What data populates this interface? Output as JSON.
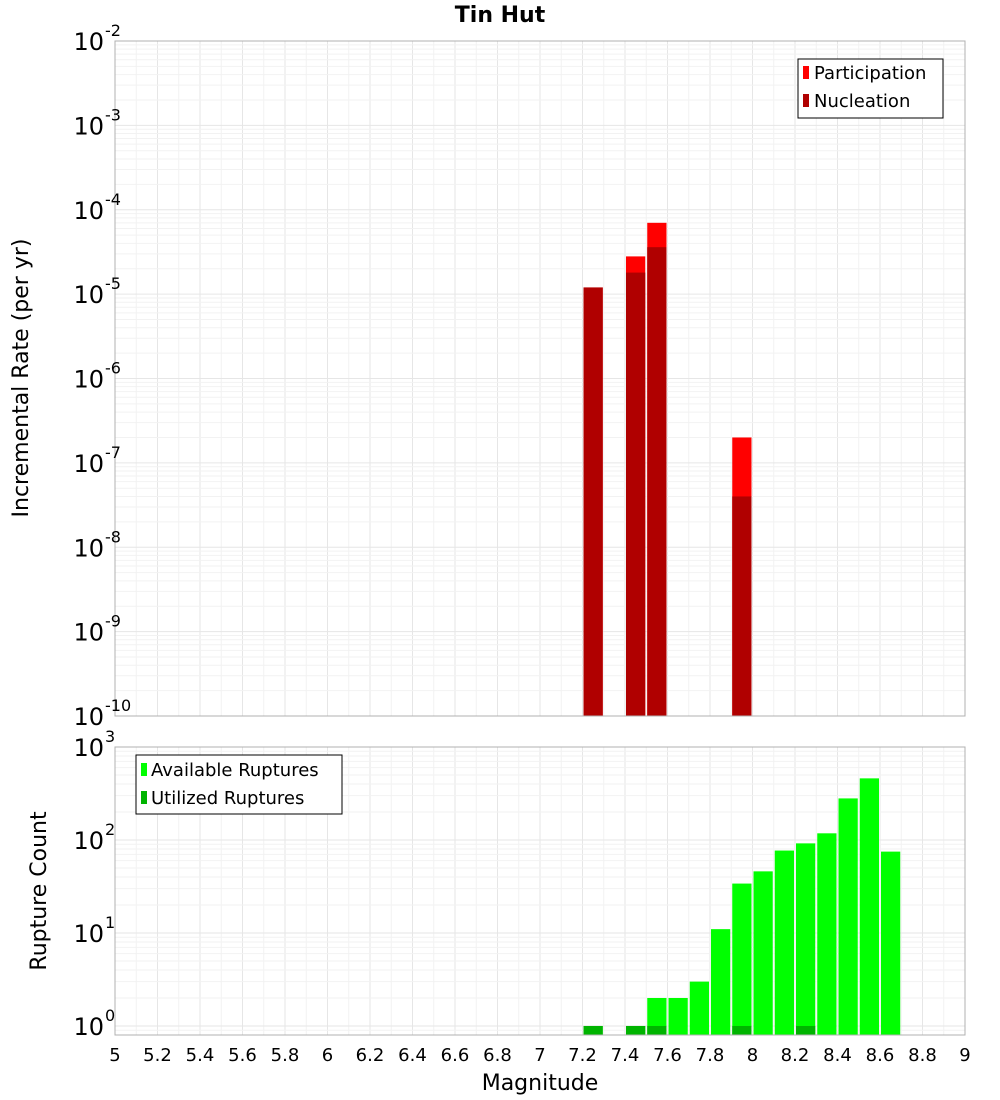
{
  "chart_data": [
    {
      "type": "bar",
      "title": "Tin Hut",
      "xlabel": "Magnitude",
      "ylabel": "Incremental Rate (per yr)",
      "yscale": "log",
      "ylim": [
        1e-10,
        0.01
      ],
      "xlim": [
        5,
        9
      ],
      "bar_width": 0.1,
      "grid": true,
      "legend_placement": "top-right",
      "y_ticks": [
        {
          "base": "10",
          "exp": "-10"
        },
        {
          "base": "10",
          "exp": "-9"
        },
        {
          "base": "10",
          "exp": "-8"
        },
        {
          "base": "10",
          "exp": "-7"
        },
        {
          "base": "10",
          "exp": "-6"
        },
        {
          "base": "10",
          "exp": "-5"
        },
        {
          "base": "10",
          "exp": "-4"
        },
        {
          "base": "10",
          "exp": "-3"
        },
        {
          "base": "10",
          "exp": "-2"
        }
      ],
      "series": [
        {
          "name": "Participation",
          "color": "#ff0000",
          "x": [
            7.25,
            7.45,
            7.55,
            7.95
          ],
          "values": [
            1.2e-05,
            2.8e-05,
            7e-05,
            2e-07
          ]
        },
        {
          "name": "Nucleation",
          "color": "#b00000",
          "x": [
            7.25,
            7.45,
            7.55,
            7.95
          ],
          "values": [
            1.2e-05,
            1.8e-05,
            3.6e-05,
            4e-08
          ]
        }
      ]
    },
    {
      "type": "bar",
      "xlabel": "Magnitude",
      "ylabel": "Rupture Count",
      "yscale": "log",
      "ylim": [
        0.8,
        1000
      ],
      "xlim": [
        5,
        9
      ],
      "bar_width": 0.1,
      "grid": true,
      "legend_placement": "top-left",
      "y_ticks": [
        {
          "base": "10",
          "exp": "0"
        },
        {
          "base": "10",
          "exp": "1"
        },
        {
          "base": "10",
          "exp": "2"
        },
        {
          "base": "10",
          "exp": "3"
        }
      ],
      "x_tick_labels": [
        "5",
        "5.2",
        "5.4",
        "5.6",
        "5.8",
        "6",
        "6.2",
        "6.4",
        "6.6",
        "6.8",
        "7",
        "7.2",
        "7.4",
        "7.6",
        "7.8",
        "8",
        "8.2",
        "8.4",
        "8.6",
        "8.8",
        "9"
      ],
      "series": [
        {
          "name": "Available Ruptures",
          "color": "#00ff00",
          "x": [
            7.25,
            7.45,
            7.55,
            7.65,
            7.75,
            7.85,
            7.95,
            8.05,
            8.15,
            8.25,
            8.35,
            8.45,
            8.55,
            8.65
          ],
          "values": [
            1,
            1,
            2,
            2,
            3,
            11,
            34,
            46,
            77,
            92,
            118,
            280,
            460,
            75
          ]
        },
        {
          "name": "Utilized Ruptures",
          "color": "#00b400",
          "x": [
            7.25,
            7.45,
            7.55,
            7.95,
            8.25
          ],
          "values": [
            1,
            1,
            1,
            1,
            1
          ]
        }
      ]
    }
  ]
}
